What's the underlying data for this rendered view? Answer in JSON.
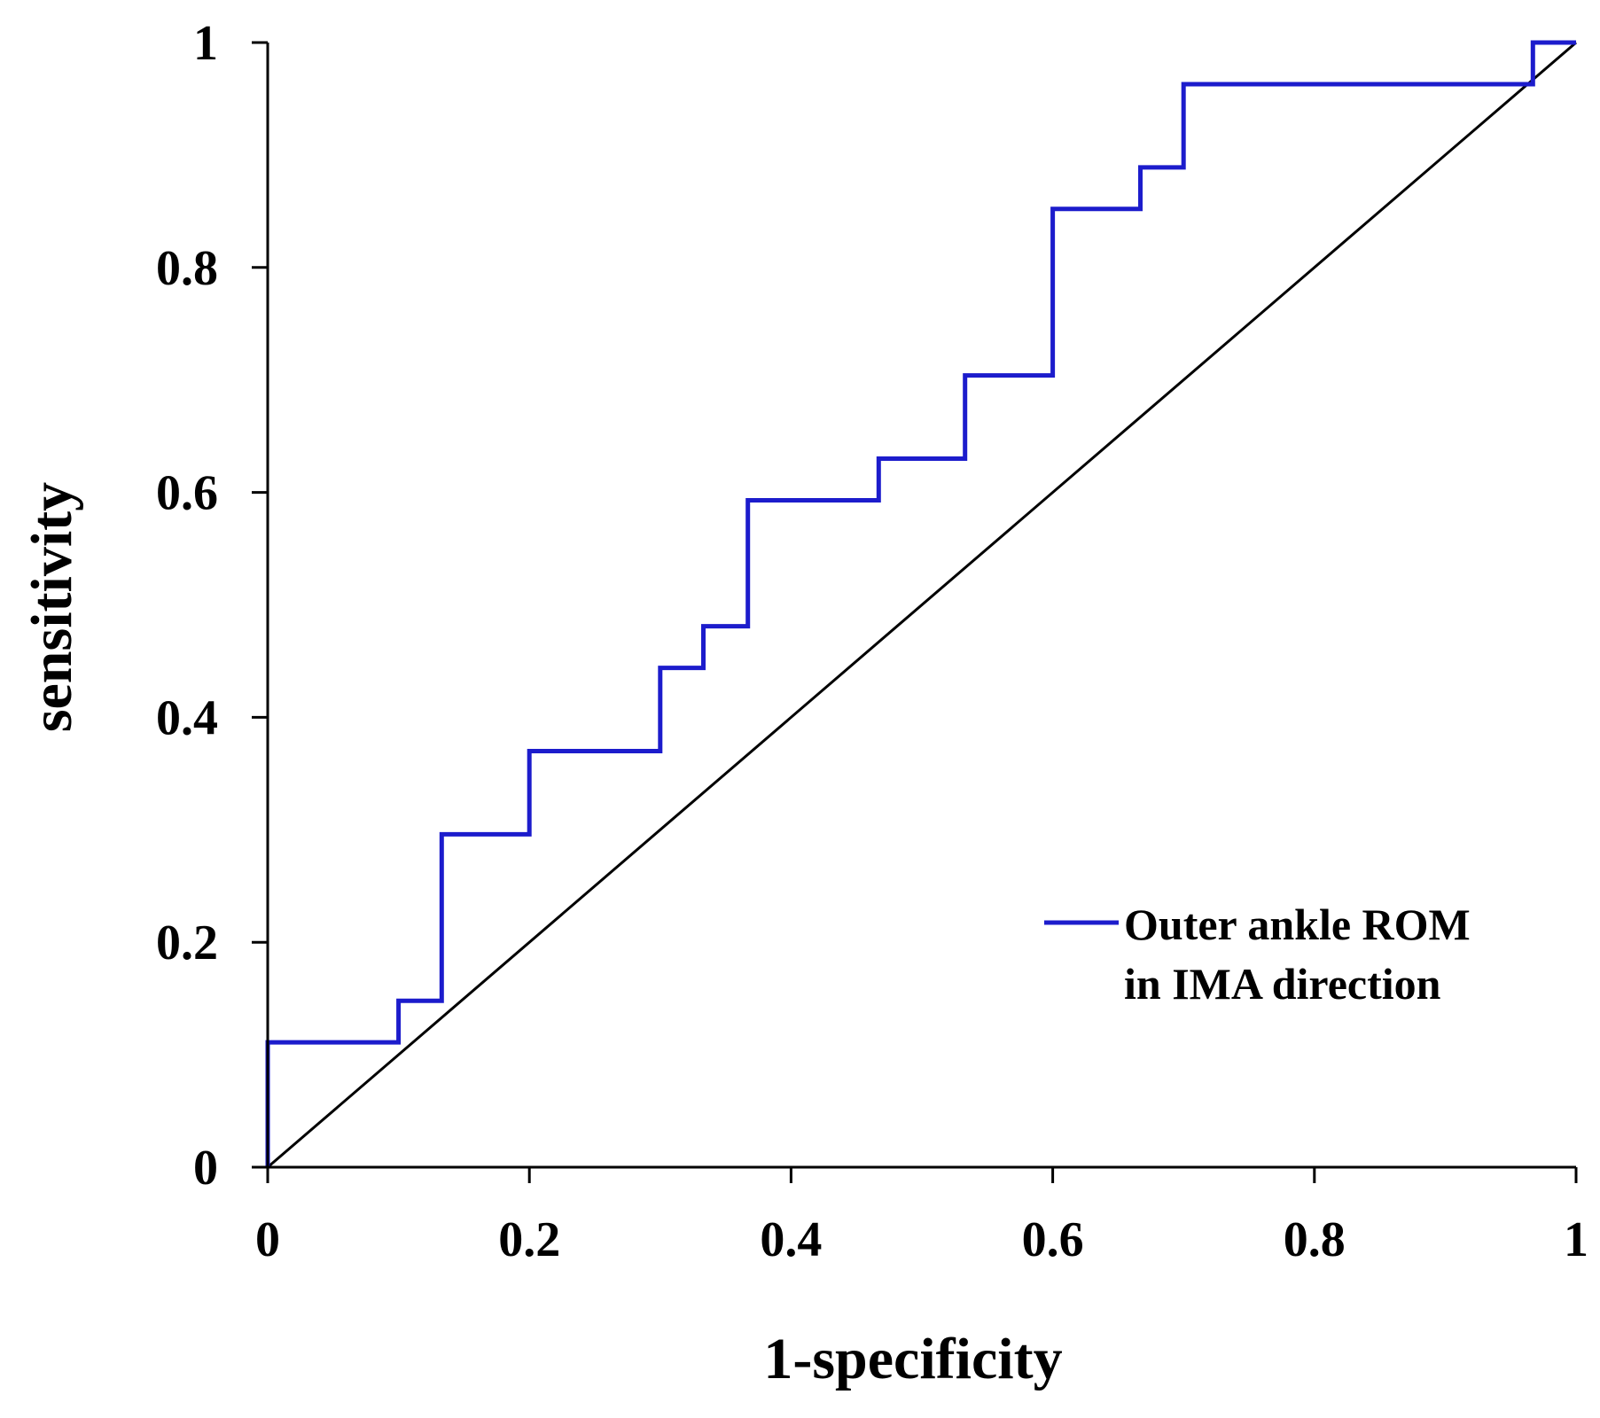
{
  "chart_data": {
    "type": "line",
    "title": "",
    "xlabel": "1-specificity",
    "ylabel": "sensitivity",
    "xlim": [
      0,
      1
    ],
    "ylim": [
      0,
      1
    ],
    "x_ticks": [
      0,
      0.2,
      0.4,
      0.6,
      0.8,
      1
    ],
    "y_ticks": [
      0,
      0.2,
      0.4,
      0.6,
      0.8,
      1
    ],
    "x_tick_labels": [
      "0",
      "0.2",
      "0.4",
      "0.6",
      "0.8",
      "1"
    ],
    "y_tick_labels": [
      "0",
      "0.2",
      "0.4",
      "0.6",
      "0.8",
      "1"
    ],
    "grid": false,
    "legend_position": "lower-right",
    "series": [
      {
        "name": "Outer ankle ROM in IMA direction",
        "legend_lines": [
          "Outer ankle ROM",
          "in IMA direction"
        ],
        "color": "#1c1ccc",
        "style": "step",
        "x": [
          0,
          0,
          0.1,
          0.1,
          0.133,
          0.133,
          0.2,
          0.2,
          0.3,
          0.3,
          0.333,
          0.333,
          0.367,
          0.367,
          0.467,
          0.467,
          0.533,
          0.533,
          0.6,
          0.6,
          0.667,
          0.667,
          0.7,
          0.7,
          0.967,
          0.967,
          1
        ],
        "y": [
          0,
          0.111,
          0.111,
          0.148,
          0.148,
          0.296,
          0.296,
          0.37,
          0.37,
          0.444,
          0.444,
          0.481,
          0.481,
          0.593,
          0.593,
          0.63,
          0.63,
          0.704,
          0.704,
          0.852,
          0.852,
          0.889,
          0.889,
          0.963,
          0.963,
          1,
          1
        ]
      },
      {
        "name": "reference",
        "color": "#000000",
        "style": "line",
        "x": [
          0,
          1
        ],
        "y": [
          0,
          1
        ]
      }
    ]
  }
}
